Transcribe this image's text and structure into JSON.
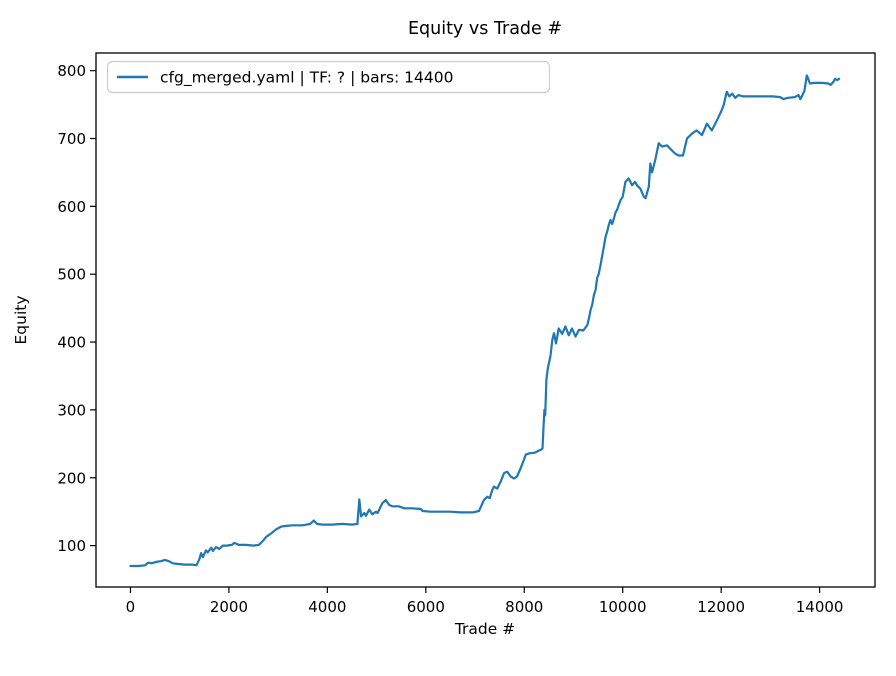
{
  "figure": {
    "background": "#ffffff"
  },
  "chart_data": {
    "type": "line",
    "title": "Equity vs Trade #",
    "xlabel": "Trade #",
    "ylabel": "Equity",
    "grid": false,
    "legend_position": "upper left",
    "xlim": [
      -700,
      15125
    ],
    "ylim": [
      39,
      826
    ],
    "x_ticks": [
      0,
      2000,
      4000,
      6000,
      8000,
      10000,
      12000,
      14000
    ],
    "y_ticks": [
      100,
      200,
      300,
      400,
      500,
      600,
      700,
      800
    ],
    "colors": {
      "line": "#1f77b4",
      "spine": "#000000",
      "tick_text": "#000000",
      "legend_border": "#cccccc",
      "legend_bg": "#ffffff"
    },
    "series": [
      {
        "name": "cfg_merged.yaml | TF: ? | bars: 14400",
        "color": "#1f77b4",
        "points": [
          [
            0,
            70
          ],
          [
            160,
            70
          ],
          [
            300,
            71
          ],
          [
            360,
            75
          ],
          [
            430,
            74
          ],
          [
            520,
            76
          ],
          [
            620,
            77
          ],
          [
            700,
            79
          ],
          [
            780,
            77
          ],
          [
            860,
            74
          ],
          [
            950,
            73
          ],
          [
            1100,
            72
          ],
          [
            1250,
            72
          ],
          [
            1340,
            71
          ],
          [
            1400,
            80
          ],
          [
            1435,
            89
          ],
          [
            1470,
            83
          ],
          [
            1535,
            93
          ],
          [
            1570,
            90
          ],
          [
            1640,
            97
          ],
          [
            1675,
            92
          ],
          [
            1740,
            98
          ],
          [
            1805,
            95
          ],
          [
            1875,
            100
          ],
          [
            1960,
            100
          ],
          [
            2060,
            101
          ],
          [
            2110,
            104
          ],
          [
            2200,
            101
          ],
          [
            2350,
            101
          ],
          [
            2500,
            100
          ],
          [
            2610,
            101
          ],
          [
            2690,
            107
          ],
          [
            2760,
            113
          ],
          [
            2860,
            118
          ],
          [
            2960,
            124
          ],
          [
            3060,
            128
          ],
          [
            3160,
            129
          ],
          [
            3300,
            130
          ],
          [
            3500,
            130
          ],
          [
            3650,
            132
          ],
          [
            3725,
            137
          ],
          [
            3790,
            132
          ],
          [
            3900,
            131
          ],
          [
            4100,
            131
          ],
          [
            4300,
            132
          ],
          [
            4500,
            131
          ],
          [
            4610,
            132
          ],
          [
            4648,
            168
          ],
          [
            4685,
            143
          ],
          [
            4750,
            148
          ],
          [
            4785,
            144
          ],
          [
            4850,
            153
          ],
          [
            4915,
            146
          ],
          [
            4985,
            150
          ],
          [
            5020,
            148
          ],
          [
            5120,
            163
          ],
          [
            5190,
            167
          ],
          [
            5255,
            160
          ],
          [
            5320,
            158
          ],
          [
            5450,
            158
          ],
          [
            5560,
            155
          ],
          [
            5720,
            155
          ],
          [
            5900,
            154
          ],
          [
            5935,
            151
          ],
          [
            6100,
            150
          ],
          [
            6300,
            150
          ],
          [
            6500,
            150
          ],
          [
            6700,
            149
          ],
          [
            6950,
            149
          ],
          [
            7080,
            151
          ],
          [
            7180,
            167
          ],
          [
            7250,
            172
          ],
          [
            7300,
            170
          ],
          [
            7350,
            182
          ],
          [
            7385,
            187
          ],
          [
            7450,
            184
          ],
          [
            7520,
            194
          ],
          [
            7590,
            207
          ],
          [
            7655,
            209
          ],
          [
            7720,
            202
          ],
          [
            7790,
            199
          ],
          [
            7855,
            202
          ],
          [
            7925,
            214
          ],
          [
            7990,
            226
          ],
          [
            8030,
            234
          ],
          [
            8100,
            236
          ],
          [
            8210,
            237
          ],
          [
            8330,
            241
          ],
          [
            8370,
            243
          ],
          [
            8395,
            280
          ],
          [
            8410,
            300
          ],
          [
            8425,
            292
          ],
          [
            8450,
            345
          ],
          [
            8480,
            362
          ],
          [
            8510,
            372
          ],
          [
            8535,
            381
          ],
          [
            8570,
            403
          ],
          [
            8605,
            413
          ],
          [
            8645,
            398
          ],
          [
            8700,
            420
          ],
          [
            8770,
            412
          ],
          [
            8835,
            423
          ],
          [
            8905,
            410
          ],
          [
            8970,
            420
          ],
          [
            9040,
            408
          ],
          [
            9110,
            418
          ],
          [
            9200,
            417
          ],
          [
            9280,
            425
          ],
          [
            9315,
            435
          ],
          [
            9345,
            447
          ],
          [
            9380,
            455
          ],
          [
            9415,
            469
          ],
          [
            9450,
            477
          ],
          [
            9480,
            494
          ],
          [
            9515,
            501
          ],
          [
            9550,
            514
          ],
          [
            9585,
            528
          ],
          [
            9615,
            540
          ],
          [
            9650,
            555
          ],
          [
            9685,
            563
          ],
          [
            9715,
            572
          ],
          [
            9750,
            580
          ],
          [
            9785,
            574
          ],
          [
            9820,
            582
          ],
          [
            9850,
            590
          ],
          [
            9885,
            595
          ],
          [
            9920,
            602
          ],
          [
            9955,
            609
          ],
          [
            10000,
            614
          ],
          [
            10055,
            636
          ],
          [
            10120,
            641
          ],
          [
            10190,
            631
          ],
          [
            10250,
            636
          ],
          [
            10300,
            630
          ],
          [
            10360,
            626
          ],
          [
            10430,
            614
          ],
          [
            10465,
            612
          ],
          [
            10530,
            629
          ],
          [
            10560,
            663
          ],
          [
            10595,
            650
          ],
          [
            10660,
            668
          ],
          [
            10730,
            693
          ],
          [
            10800,
            688
          ],
          [
            10900,
            690
          ],
          [
            10965,
            685
          ],
          [
            11060,
            678
          ],
          [
            11135,
            675
          ],
          [
            11225,
            675
          ],
          [
            11305,
            700
          ],
          [
            11405,
            707
          ],
          [
            11500,
            712
          ],
          [
            11610,
            705
          ],
          [
            11710,
            722
          ],
          [
            11810,
            712
          ],
          [
            11915,
            727
          ],
          [
            12000,
            740
          ],
          [
            12050,
            749
          ],
          [
            12115,
            769
          ],
          [
            12165,
            762
          ],
          [
            12225,
            766
          ],
          [
            12285,
            760
          ],
          [
            12350,
            764
          ],
          [
            12450,
            762
          ],
          [
            12650,
            762
          ],
          [
            12850,
            762
          ],
          [
            13050,
            762
          ],
          [
            13200,
            761
          ],
          [
            13260,
            758
          ],
          [
            13360,
            760
          ],
          [
            13500,
            761
          ],
          [
            13570,
            764
          ],
          [
            13610,
            758
          ],
          [
            13690,
            770
          ],
          [
            13740,
            793
          ],
          [
            13805,
            781
          ],
          [
            13900,
            782
          ],
          [
            14050,
            782
          ],
          [
            14180,
            781
          ],
          [
            14225,
            779
          ],
          [
            14285,
            784
          ],
          [
            14315,
            788
          ],
          [
            14355,
            786
          ],
          [
            14395,
            788
          ]
        ]
      }
    ]
  }
}
